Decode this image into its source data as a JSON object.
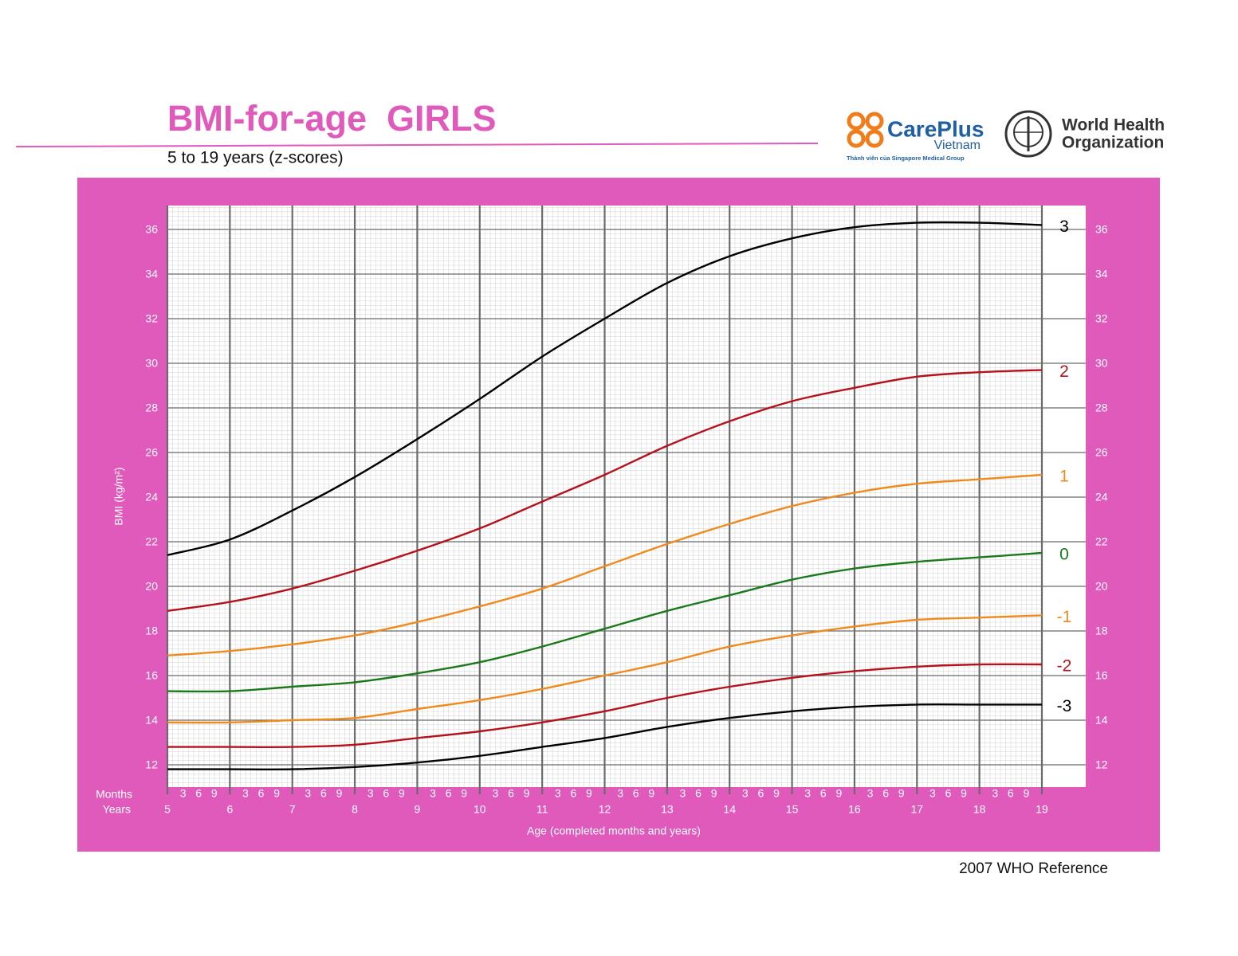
{
  "chart_data": {
    "type": "line",
    "title": "BMI-for-age  GIRLS",
    "subtitle": "5 to 19 years (z-scores)",
    "y_label": "BMI (kg/m²)",
    "x_label": "Age (completed months and years)",
    "month_label": "Months",
    "year_label": "Years",
    "source": "2007 WHO Reference",
    "x": [
      5,
      6,
      7,
      8,
      9,
      10,
      11,
      12,
      13,
      14,
      15,
      16,
      17,
      18,
      19
    ],
    "xlim": [
      5,
      19
    ],
    "xticks": [
      5,
      6,
      7,
      8,
      9,
      10,
      11,
      12,
      13,
      14,
      15,
      16,
      17,
      18,
      19
    ],
    "month_ticks": [
      3,
      6,
      9
    ],
    "ylim": [
      11,
      37
    ],
    "yticks": [
      12,
      14,
      16,
      18,
      20,
      22,
      24,
      26,
      28,
      30,
      32,
      34,
      36
    ],
    "grid": true,
    "series": [
      {
        "name": "3",
        "color": "#000000",
        "values": [
          21.4,
          22.1,
          23.4,
          24.9,
          26.6,
          28.4,
          30.3,
          32.0,
          33.6,
          34.8,
          35.6,
          36.1,
          36.3,
          36.3,
          36.2
        ]
      },
      {
        "name": "2",
        "color": "#b5121b",
        "values": [
          18.9,
          19.3,
          19.9,
          20.7,
          21.6,
          22.6,
          23.8,
          25.0,
          26.3,
          27.4,
          28.3,
          28.9,
          29.4,
          29.6,
          29.7
        ]
      },
      {
        "name": "1",
        "color": "#f08a1c",
        "values": [
          16.9,
          17.1,
          17.4,
          17.8,
          18.4,
          19.1,
          19.9,
          20.9,
          21.9,
          22.8,
          23.6,
          24.2,
          24.6,
          24.8,
          25.0
        ]
      },
      {
        "name": "0",
        "color": "#1a7a1a",
        "values": [
          15.3,
          15.3,
          15.5,
          15.7,
          16.1,
          16.6,
          17.3,
          18.1,
          18.9,
          19.6,
          20.3,
          20.8,
          21.1,
          21.3,
          21.5
        ]
      },
      {
        "name": "-1",
        "color": "#f08a1c",
        "values": [
          13.9,
          13.9,
          14.0,
          14.1,
          14.5,
          14.9,
          15.4,
          16.0,
          16.6,
          17.3,
          17.8,
          18.2,
          18.5,
          18.6,
          18.7
        ]
      },
      {
        "name": "-2",
        "color": "#b5121b",
        "values": [
          12.8,
          12.8,
          12.8,
          12.9,
          13.2,
          13.5,
          13.9,
          14.4,
          15.0,
          15.5,
          15.9,
          16.2,
          16.4,
          16.5,
          16.5
        ]
      },
      {
        "name": "-3",
        "color": "#000000",
        "values": [
          11.8,
          11.8,
          11.8,
          11.9,
          12.1,
          12.4,
          12.8,
          13.2,
          13.7,
          14.1,
          14.4,
          14.6,
          14.7,
          14.7,
          14.7
        ]
      }
    ]
  },
  "logos": {
    "careplus_name": "CarePlus",
    "careplus_country": "Vietnam",
    "careplus_tagline": "Thành viên của Singapore Medical Group",
    "who_line1": "World Health",
    "who_line2": "Organization"
  }
}
